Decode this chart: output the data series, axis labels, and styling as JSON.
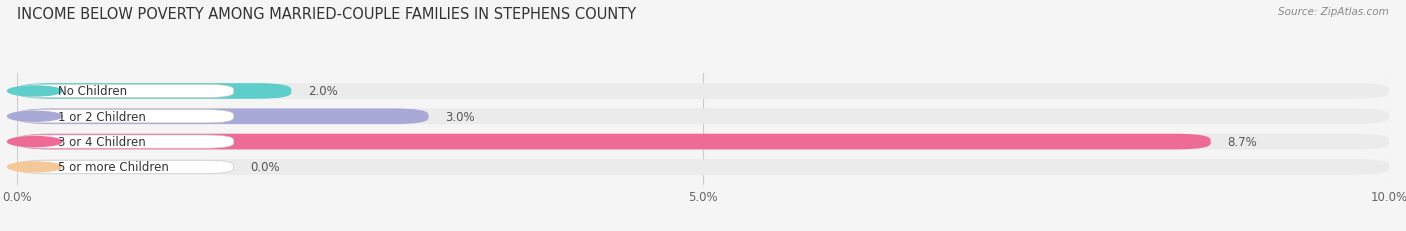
{
  "title": "INCOME BELOW POVERTY AMONG MARRIED-COUPLE FAMILIES IN STEPHENS COUNTY",
  "source": "Source: ZipAtlas.com",
  "categories": [
    "No Children",
    "1 or 2 Children",
    "3 or 4 Children",
    "5 or more Children"
  ],
  "values": [
    2.0,
    3.0,
    8.7,
    0.0
  ],
  "bar_colors": [
    "#5ececa",
    "#a9a9d8",
    "#ee6b96",
    "#f5c899"
  ],
  "bg_bar_color": "#ebebeb",
  "xlim": [
    0,
    10.0
  ],
  "xticks": [
    0.0,
    5.0,
    10.0
  ],
  "xtick_labels": [
    "0.0%",
    "5.0%",
    "10.0%"
  ],
  "figsize": [
    14.06,
    2.32
  ],
  "dpi": 100,
  "title_fontsize": 10.5,
  "label_fontsize": 8.5,
  "value_fontsize": 8.5,
  "bar_height": 0.62,
  "background_color": "#f5f5f5"
}
